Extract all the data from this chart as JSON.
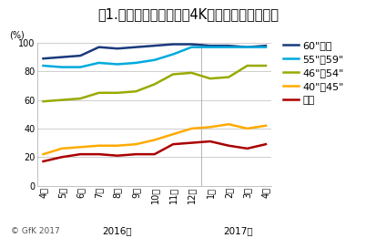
{
  "title": "図1.テレビ販売における4Kテレビの数量構成比",
  "ylabel": "(%)",
  "copyright": "© GfK 2017",
  "ylim": [
    0,
    100
  ],
  "xtick_labels": [
    "4月",
    "5月",
    "6月",
    "7月",
    "8月",
    "9月",
    "10月",
    "11月",
    "12月",
    "1月",
    "2月",
    "3月",
    "4月"
  ],
  "year_2016_label": "2016年",
  "year_2017_label": "2017年",
  "series": [
    {
      "label": "60\"以上",
      "color": "#1a3a7c",
      "linewidth": 1.8,
      "values": [
        89,
        90,
        91,
        97,
        96,
        97,
        98,
        99,
        99,
        98,
        98,
        97,
        98
      ]
    },
    {
      "label": "55\"〜59\"",
      "color": "#00aadd",
      "linewidth": 1.8,
      "values": [
        84,
        83,
        83,
        86,
        85,
        86,
        88,
        92,
        97,
        97,
        97,
        97,
        97
      ]
    },
    {
      "label": "46\"〜54\"",
      "color": "#99aa00",
      "linewidth": 1.8,
      "values": [
        59,
        60,
        61,
        65,
        65,
        66,
        71,
        78,
        79,
        75,
        76,
        84,
        84
      ]
    },
    {
      "label": "40\"〜45\"",
      "color": "#ffaa00",
      "linewidth": 1.8,
      "values": [
        22,
        26,
        27,
        28,
        28,
        29,
        32,
        36,
        40,
        41,
        43,
        40,
        42
      ]
    },
    {
      "label": "全体",
      "color": "#aa0000",
      "linewidth": 1.8,
      "values": [
        17,
        20,
        22,
        22,
        21,
        22,
        22,
        29,
        30,
        31,
        28,
        26,
        29
      ]
    }
  ],
  "background_color": "#ffffff",
  "grid_color": "#bbbbbb",
  "title_fontsize": 10.5,
  "legend_fontsize": 8,
  "tick_fontsize": 7,
  "year_label_fontsize": 7.5
}
